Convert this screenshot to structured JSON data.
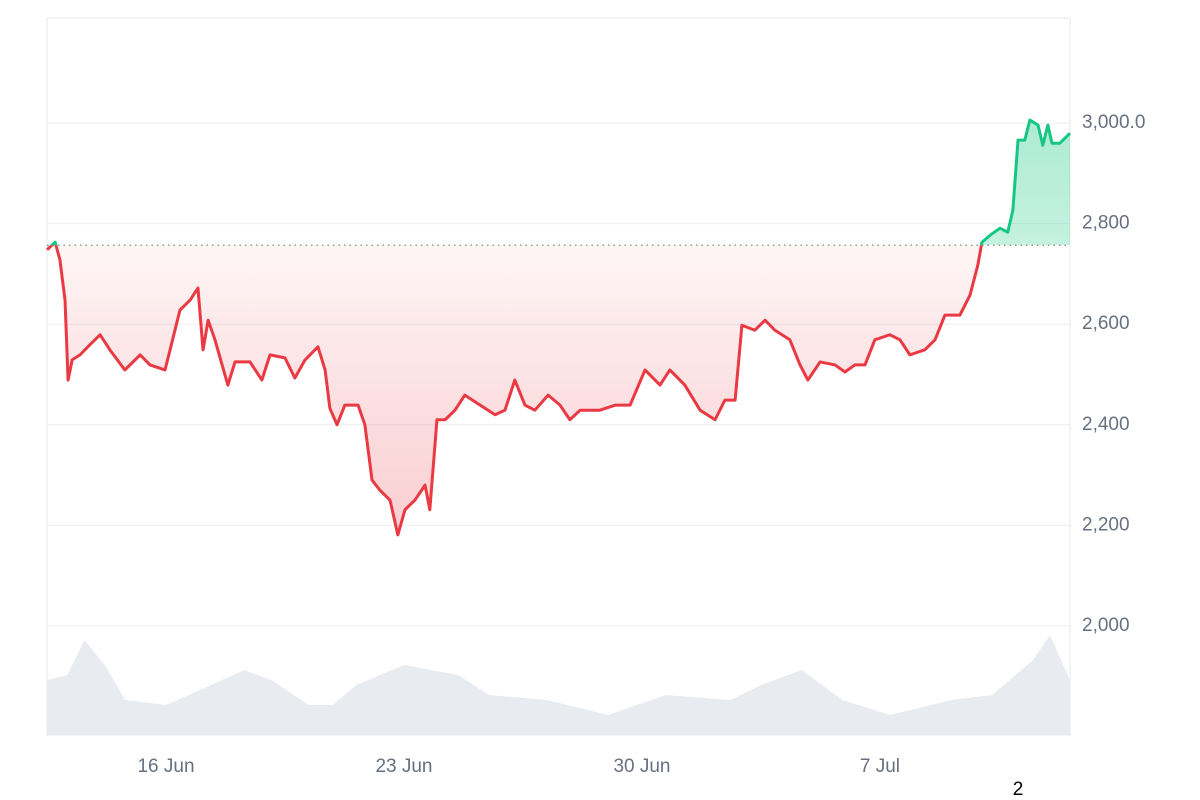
{
  "chart_data": {
    "type": "line",
    "x": [
      12.5,
      12.74,
      12.88,
      13.03,
      13.12,
      13.24,
      13.47,
      13.76,
      14.06,
      14.35,
      14.79,
      15.24,
      15.53,
      15.97,
      16.12,
      16.41,
      16.71,
      16.94,
      17.09,
      17.24,
      17.44,
      17.82,
      18.03,
      18.47,
      18.82,
      19.06,
      19.5,
      19.79,
      20.09,
      20.47,
      20.68,
      20.82,
      21.03,
      21.26,
      21.65,
      21.85,
      22.06,
      22.29,
      22.59,
      22.82,
      23.03,
      23.32,
      23.62,
      23.76,
      23.97,
      24.21,
      24.5,
      24.79,
      25.24,
      25.68,
      25.97,
      26.26,
      26.56,
      26.85,
      27.24,
      27.59,
      27.88,
      28.18,
      28.76,
      29.21,
      29.65,
      30.09,
      30.53,
      30.82,
      31.26,
      31.71,
      32.15,
      32.44,
      32.74,
      32.94,
      33.32,
      33.62,
      33.91,
      34.35,
      34.65,
      34.88,
      35.24,
      35.68,
      35.97,
      36.26,
      36.56,
      36.85,
      37.29,
      37.59,
      37.88,
      38.32,
      38.62,
      38.91,
      39.35,
      39.65,
      39.88,
      40.0,
      40.24,
      40.53,
      40.76,
      40.91,
      41.06,
      41.26,
      41.41,
      41.65,
      41.79,
      41.94,
      42.06,
      42.29,
      42.59
    ],
    "values": [
      2748,
      2763,
      2728,
      2648,
      2489,
      2529,
      2539,
      2559,
      2579,
      2549,
      2509,
      2539,
      2519,
      2509,
      2549,
      2628,
      2648,
      2672,
      2549,
      2608,
      2569,
      2479,
      2525,
      2525,
      2489,
      2539,
      2533,
      2493,
      2529,
      2555,
      2509,
      2433,
      2400,
      2439,
      2439,
      2400,
      2290,
      2270,
      2250,
      2181,
      2231,
      2250,
      2280,
      2231,
      2410,
      2410,
      2429,
      2459,
      2439,
      2420,
      2429,
      2489,
      2439,
      2429,
      2459,
      2439,
      2410,
      2429,
      2429,
      2439,
      2439,
      2509,
      2479,
      2509,
      2479,
      2429,
      2410,
      2449,
      2449,
      2598,
      2588,
      2608,
      2588,
      2569,
      2519,
      2489,
      2525,
      2519,
      2505,
      2519,
      2519,
      2569,
      2579,
      2569,
      2539,
      2549,
      2569,
      2618,
      2618,
      2658,
      2718,
      2763,
      2777,
      2791,
      2783,
      2827,
      2966,
      2966,
      3006,
      2996,
      2956,
      2996,
      2960,
      2960,
      2980
    ],
    "baseline": 2757,
    "up_color": "#16c784",
    "down_color": "#ea3943",
    "xlim": [
      12.5,
      42.59
    ],
    "xticks": [
      {
        "value": 16,
        "label": "16 Jun"
      },
      {
        "value": 23,
        "label": "23 Jun"
      },
      {
        "value": 30,
        "label": "30 Jun"
      },
      {
        "value": 37,
        "label": "7 Jul"
      }
    ],
    "ylim": [
      1783,
      3209
    ],
    "yticks": [
      {
        "value": 2000,
        "label": "2,000"
      },
      {
        "value": 2200,
        "label": "2,200"
      },
      {
        "value": 2400,
        "label": "2,400"
      },
      {
        "value": 2600,
        "label": "2,600"
      },
      {
        "value": 2800,
        "label": "2,800"
      },
      {
        "value": 3000,
        "label": "3,000.0"
      }
    ],
    "grid": true,
    "volume": {
      "x": [
        12.5,
        13.1,
        13.6,
        14.2,
        14.8,
        16.0,
        17.0,
        18.3,
        19.1,
        20.2,
        20.9,
        21.6,
        23.0,
        24.6,
        25.5,
        27.2,
        29.0,
        30.7,
        32.6,
        33.5,
        34.7,
        35.9,
        37.3,
        39.1,
        40.3,
        41.5,
        42.0,
        42.59
      ],
      "values": [
        55,
        60,
        95,
        70,
        35,
        30,
        45,
        65,
        55,
        30,
        30,
        50,
        70,
        60,
        40,
        35,
        20,
        40,
        35,
        50,
        65,
        35,
        20,
        35,
        40,
        75,
        100,
        55
      ],
      "ylim": [
        0,
        120
      ],
      "color": "#e8ebf0"
    },
    "footnote": "2"
  }
}
